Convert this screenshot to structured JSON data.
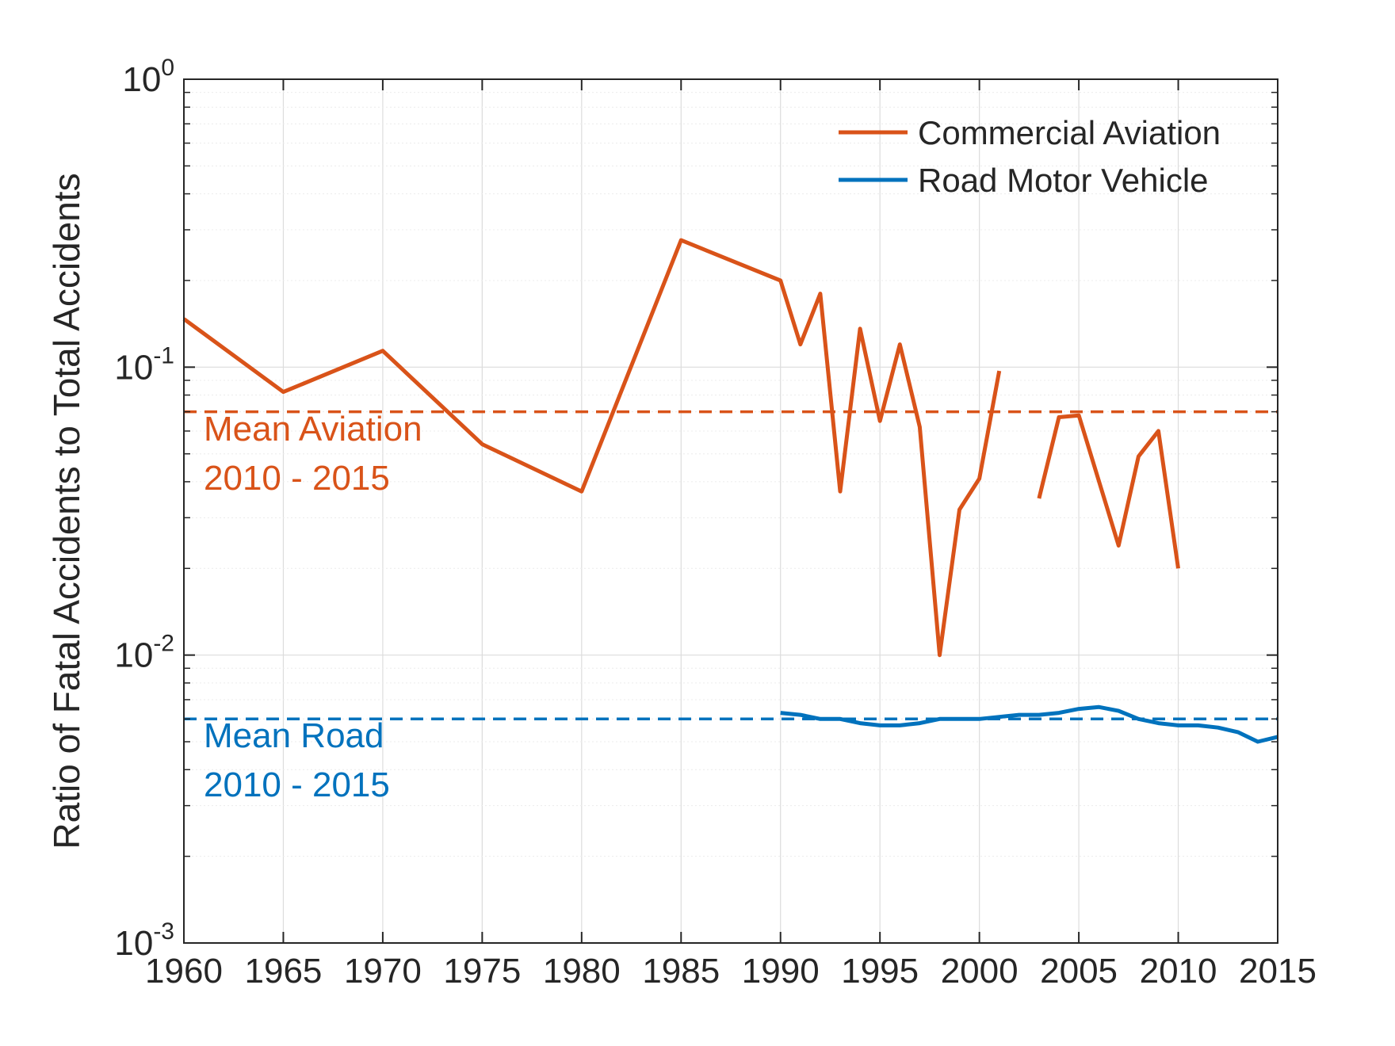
{
  "chart_data": {
    "type": "line",
    "title": "",
    "xlabel": "",
    "ylabel": "Ratio of Fatal Accidents to Total Accidents",
    "yscale": "log",
    "xlim": [
      1960,
      2015
    ],
    "ylim": [
      0.001,
      1
    ],
    "grid": true,
    "legend_position": "top-right",
    "x_ticks": [
      1960,
      1965,
      1970,
      1975,
      1980,
      1985,
      1990,
      1995,
      2000,
      2005,
      2010,
      2015
    ],
    "y_ticks": [
      {
        "value": 0.001,
        "base": "10",
        "exp": "-3"
      },
      {
        "value": 0.01,
        "base": "10",
        "exp": "-2"
      },
      {
        "value": 0.1,
        "base": "10",
        "exp": "-1"
      },
      {
        "value": 1,
        "base": "10",
        "exp": "0"
      }
    ],
    "series": [
      {
        "name": "Commercial Aviation",
        "color": "#D95319",
        "segments": [
          [
            [
              1960,
              0.147
            ],
            [
              1965,
              0.082
            ],
            [
              1970,
              0.114
            ],
            [
              1975,
              0.054
            ],
            [
              1980,
              0.037
            ],
            [
              1985,
              0.276
            ],
            [
              1990,
              0.2
            ],
            [
              1991,
              0.12
            ],
            [
              1992,
              0.18
            ],
            [
              1993,
              0.037
            ],
            [
              1994,
              0.136
            ],
            [
              1995,
              0.065
            ],
            [
              1996,
              0.12
            ],
            [
              1997,
              0.062
            ],
            [
              1998,
              0.01
            ],
            [
              1999,
              0.032
            ],
            [
              2000,
              0.041
            ],
            [
              2001,
              0.097
            ]
          ],
          [
            [
              2003,
              0.035
            ],
            [
              2004,
              0.067
            ],
            [
              2005,
              0.068
            ],
            [
              2007,
              0.024
            ],
            [
              2008,
              0.049
            ],
            [
              2009,
              0.06
            ],
            [
              2010,
              0.02
            ]
          ]
        ]
      },
      {
        "name": "Road Motor Vehicle",
        "color": "#0072BD",
        "segments": [
          [
            [
              1990,
              0.0063
            ],
            [
              1991,
              0.0062
            ],
            [
              1992,
              0.006
            ],
            [
              1993,
              0.006
            ],
            [
              1994,
              0.0058
            ],
            [
              1995,
              0.0057
            ],
            [
              1996,
              0.0057
            ],
            [
              1997,
              0.0058
            ],
            [
              1998,
              0.006
            ],
            [
              1999,
              0.006
            ],
            [
              2000,
              0.006
            ],
            [
              2001,
              0.0061
            ],
            [
              2002,
              0.0062
            ],
            [
              2003,
              0.0062
            ],
            [
              2004,
              0.0063
            ],
            [
              2005,
              0.0065
            ],
            [
              2006,
              0.0066
            ],
            [
              2007,
              0.0064
            ],
            [
              2008,
              0.006
            ],
            [
              2009,
              0.0058
            ],
            [
              2010,
              0.0057
            ],
            [
              2011,
              0.0057
            ],
            [
              2012,
              0.0056
            ],
            [
              2013,
              0.0054
            ],
            [
              2014,
              0.005
            ],
            [
              2015,
              0.0052
            ]
          ]
        ]
      }
    ],
    "reference_lines": [
      {
        "name": "Mean Aviation 2010 - 2015",
        "value": 0.07,
        "color": "#D95319",
        "style": "dashed",
        "label_lines": [
          "Mean Aviation",
          "2010 - 2015"
        ]
      },
      {
        "name": "Mean Road 2010 - 2015",
        "value": 0.006,
        "color": "#0072BD",
        "style": "dashed",
        "label_lines": [
          "Mean Road",
          "2010 - 2015"
        ]
      }
    ]
  }
}
